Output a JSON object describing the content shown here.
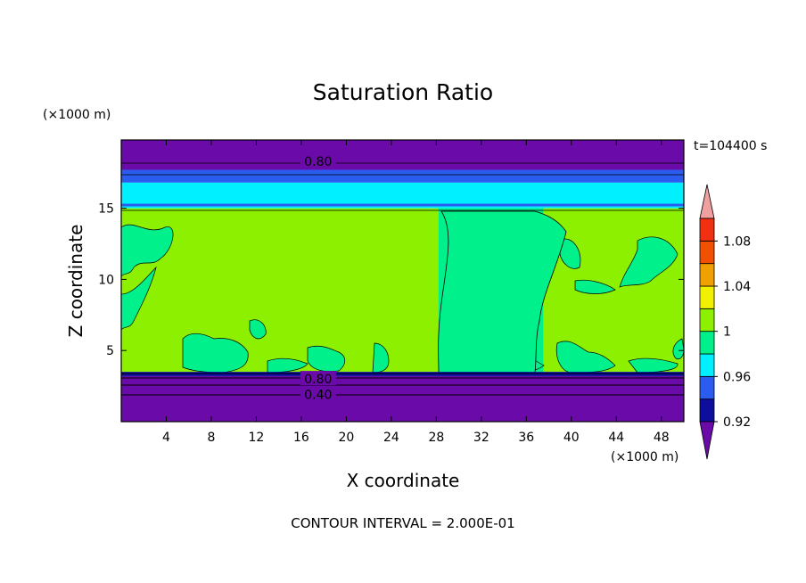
{
  "chart_data": {
    "type": "contour",
    "title": "Saturation Ratio",
    "time_label": "t=104400 s",
    "x_axis": {
      "label": "X coordinate",
      "unit": "(×1000 m)",
      "range": [
        0,
        50
      ],
      "ticks": [
        4,
        8,
        12,
        16,
        20,
        24,
        28,
        32,
        36,
        40,
        44,
        48
      ]
    },
    "y_axis": {
      "label": "Z coordinate",
      "unit": "(×1000 m)",
      "range": [
        0,
        19.8
      ],
      "ticks": [
        5,
        10,
        15
      ]
    },
    "colorbar": {
      "levels": [
        0.92,
        0.94,
        0.96,
        0.98,
        1.0,
        1.02,
        1.04,
        1.06,
        1.08,
        1.1
      ],
      "tick_labels": [
        "0.92",
        "0.96",
        "1",
        "1.04",
        "1.08"
      ],
      "colors": [
        "#6a0aa8",
        "#0d0d9e",
        "#2a5cf0",
        "#00f0ff",
        "#00f08c",
        "#8cf000",
        "#f0f000",
        "#f0a000",
        "#f05000",
        "#f03010",
        "#f0a0a0"
      ]
    },
    "contour_labels": [
      {
        "text": "0.80",
        "x": 17.5,
        "z": 18.3
      },
      {
        "text": "0.80",
        "x": 17.5,
        "z": 3.0
      },
      {
        "text": "0.40",
        "x": 17.5,
        "z": 1.9
      }
    ],
    "bands": [
      {
        "z": [
          0,
          3.2
        ],
        "color": "#6a0aa8"
      },
      {
        "z": [
          3.2,
          3.5
        ],
        "color": "#0d0d9e"
      },
      {
        "z": [
          16.8,
          17.7
        ],
        "color": "#2a5cf0"
      },
      {
        "z": [
          15.0,
          16.8
        ],
        "color": "#00f0ff"
      },
      {
        "z": [
          17.7,
          19.8
        ],
        "color": "#6a0aa8"
      }
    ],
    "regions": [
      {
        "name": "layer-1.00-1.02",
        "color": "#8cf000",
        "z": [
          3.5,
          15.0
        ],
        "x": [
          0,
          50
        ]
      },
      {
        "name": "layer-0.98-1.00-center",
        "color": "#00f08c",
        "x": [
          28.2,
          37.5
        ],
        "z": [
          3.5,
          15.0
        ]
      }
    ],
    "footer": "CONTOUR INTERVAL = 2.000E-01"
  }
}
